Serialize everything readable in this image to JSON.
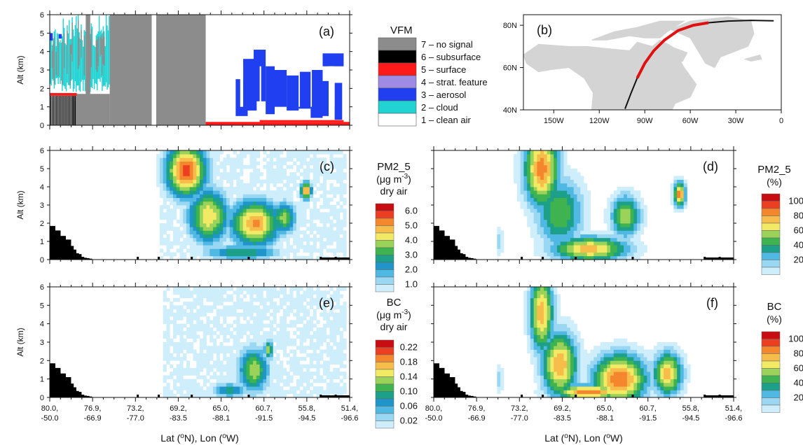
{
  "palette": {
    "vfm": [
      "#ffffff",
      "#22d3d3",
      "#1f3ff0",
      "#9f8be3",
      "#ff1a1a",
      "#000000",
      "#8c8c8c"
    ],
    "conc": [
      "#ffffff",
      "#cfeefc",
      "#9ad7f2",
      "#4fb8e3",
      "#1f95c9",
      "#1ca089",
      "#3fb34f",
      "#9bd35a",
      "#f2ea64",
      "#f7bd4a",
      "#f4862e",
      "#ec3e20",
      "#c80d12"
    ],
    "pct": [
      "#ffffff",
      "#cfeefc",
      "#9ad7f2",
      "#4fb8e3",
      "#1ca089",
      "#3fb34f",
      "#9bd35a",
      "#f2ea64",
      "#f7bd4a",
      "#f4862e",
      "#ec3e20",
      "#c80d12"
    ],
    "land": "#d4d4d4",
    "track_red": "#e01010"
  },
  "chart_data": [
    {
      "id": "a",
      "type": "heatmap",
      "panel_label": "(a)",
      "ylabel": "Alt (km)",
      "xlim": [
        0,
        1
      ],
      "ylim": [
        0,
        6
      ],
      "yticks": [
        "0",
        "1",
        "2",
        "3",
        "4",
        "5",
        "6"
      ],
      "legend": {
        "title": "VFM",
        "entries": [
          "7 – no signal",
          "6 – subsurface",
          "5 – surface",
          "4 – strat. feature",
          "3 – aerosol",
          "2 – cloud",
          "1 – clean air"
        ],
        "colors": [
          "#8c8c8c",
          "#000000",
          "#ff1a1a",
          "#9f8be3",
          "#1f3ff0",
          "#22d3d3",
          "#ffffff"
        ]
      },
      "features": [
        {
          "class": 2,
          "x": [
            0.0,
            0.2
          ],
          "y": [
            1.8,
            5.9
          ]
        },
        {
          "class": 7,
          "x": [
            0.2,
            0.52
          ],
          "y": [
            0.0,
            6.0
          ]
        },
        {
          "class": 6,
          "x": [
            0.0,
            0.09
          ],
          "y": [
            0.0,
            1.6
          ]
        },
        {
          "class": 3,
          "x": [
            0.62,
            0.98
          ],
          "y": [
            0.4,
            4.2
          ]
        },
        {
          "class": 5,
          "x": [
            0.52,
            1.0
          ],
          "y": [
            0.0,
            0.3
          ]
        }
      ]
    },
    {
      "id": "b",
      "type": "map",
      "panel_label": "(b)",
      "ylabel": "",
      "xticks": [
        "150W",
        "120W",
        "90W",
        "60W",
        "30W",
        "0"
      ],
      "yticks": [
        "40N",
        "60N",
        "80N"
      ],
      "lon_range": [
        -170,
        0
      ],
      "lat_range": [
        40,
        85
      ]
    },
    {
      "id": "c",
      "type": "heatmap",
      "panel_label": "(c)",
      "variable": "PM2_5",
      "ylabel": "Alt (km)",
      "ylim": [
        0,
        6
      ],
      "yticks": [
        "0",
        "1",
        "2",
        "3",
        "4",
        "5",
        "6"
      ],
      "colorbar": {
        "title": [
          "PM2_5",
          "(μg m",
          "-3",
          ")",
          "dry air"
        ],
        "labels": [
          "6.0",
          "5.0",
          "4.0",
          "3.0",
          "2.0",
          "1.0"
        ],
        "boundaries": [
          1.0,
          1.5,
          2.0,
          2.5,
          3.0,
          3.5,
          4.0,
          4.5,
          5.0,
          5.5,
          6.0
        ]
      },
      "plumes": [
        {
          "x": 0.455,
          "y": 4.9,
          "sx": 0.075,
          "sy": 1.6,
          "peak": 6.2
        },
        {
          "x": 0.53,
          "y": 2.4,
          "sx": 0.075,
          "sy": 1.6,
          "peak": 5.0
        },
        {
          "x": 0.685,
          "y": 2.0,
          "sx": 0.09,
          "sy": 1.4,
          "peak": 5.6
        },
        {
          "x": 0.78,
          "y": 2.3,
          "sx": 0.045,
          "sy": 1.0,
          "peak": 4.2
        },
        {
          "x": 0.855,
          "y": 3.8,
          "sx": 0.02,
          "sy": 0.5,
          "peak": 6.0
        },
        {
          "x": 0.64,
          "y": 0.4,
          "sx": 0.14,
          "sy": 0.45,
          "peak": 3.6
        }
      ],
      "background": {
        "x": [
          0.37,
          0.99
        ],
        "y": [
          0.0,
          6.0
        ],
        "level": 1.1
      }
    },
    {
      "id": "d",
      "type": "heatmap",
      "panel_label": "(d)",
      "variable": "PM2_5",
      "ylabel": "",
      "ylim": [
        0,
        6
      ],
      "colorbar": {
        "title": [
          "PM2_5",
          "(%)"
        ],
        "labels": [
          "100",
          "80",
          "60",
          "40",
          "20"
        ],
        "boundaries": [
          10,
          20,
          30,
          40,
          50,
          60,
          70,
          80,
          90,
          100
        ]
      },
      "plumes": [
        {
          "x": 0.36,
          "y": 5.0,
          "sx": 0.06,
          "sy": 2.2,
          "peak": 95
        },
        {
          "x": 0.42,
          "y": 2.6,
          "sx": 0.08,
          "sy": 2.0,
          "peak": 60
        },
        {
          "x": 0.52,
          "y": 0.6,
          "sx": 0.13,
          "sy": 0.7,
          "peak": 85
        },
        {
          "x": 0.64,
          "y": 2.4,
          "sx": 0.05,
          "sy": 1.2,
          "peak": 70
        },
        {
          "x": 0.82,
          "y": 3.6,
          "sx": 0.02,
          "sy": 0.7,
          "peak": 95
        },
        {
          "x": 0.22,
          "y": 1.0,
          "sx": 0.01,
          "sy": 0.8,
          "peak": 30
        }
      ],
      "background": {
        "x": [
          0.3,
          0.93
        ],
        "y": [
          0.0,
          6.0
        ],
        "level": 5
      }
    },
    {
      "id": "e",
      "type": "heatmap",
      "panel_label": "(e)",
      "variable": "BC",
      "ylabel": "Alt (km)",
      "ylim": [
        0,
        6
      ],
      "yticks": [
        "0",
        "1",
        "2",
        "3",
        "4",
        "5",
        "6"
      ],
      "colorbar": {
        "title": [
          "BC",
          "(μg m",
          "-3",
          ")",
          "dry air"
        ],
        "labels": [
          "0.22",
          "0.18",
          "0.14",
          "0.10",
          "0.06",
          "0.02"
        ],
        "boundaries": [
          0.02,
          0.04,
          0.06,
          0.08,
          0.1,
          0.12,
          0.14,
          0.16,
          0.18,
          0.2,
          0.22
        ]
      },
      "plumes": [
        {
          "x": 0.68,
          "y": 1.5,
          "sx": 0.05,
          "sy": 1.2,
          "peak": 0.16
        },
        {
          "x": 0.73,
          "y": 2.6,
          "sx": 0.015,
          "sy": 0.5,
          "peak": 0.16
        },
        {
          "x": 0.6,
          "y": 0.4,
          "sx": 0.06,
          "sy": 0.4,
          "peak": 0.11
        }
      ],
      "background": {
        "x": [
          0.38,
          0.99
        ],
        "y": [
          0.0,
          6.0
        ],
        "level": 0.03
      }
    },
    {
      "id": "f",
      "type": "heatmap",
      "panel_label": "(f)",
      "variable": "BC",
      "ylabel": "",
      "ylim": [
        0,
        6
      ],
      "colorbar": {
        "title": [
          "BC",
          "(%)"
        ],
        "labels": [
          "100",
          "80",
          "60",
          "40",
          "20"
        ],
        "boundaries": [
          10,
          20,
          30,
          40,
          50,
          60,
          70,
          80,
          90,
          100
        ]
      },
      "plumes": [
        {
          "x": 0.36,
          "y": 4.6,
          "sx": 0.04,
          "sy": 2.2,
          "peak": 88
        },
        {
          "x": 0.42,
          "y": 1.8,
          "sx": 0.06,
          "sy": 1.8,
          "peak": 90
        },
        {
          "x": 0.62,
          "y": 1.0,
          "sx": 0.09,
          "sy": 1.4,
          "peak": 100
        },
        {
          "x": 0.52,
          "y": 0.3,
          "sx": 0.12,
          "sy": 0.4,
          "peak": 100
        },
        {
          "x": 0.78,
          "y": 1.3,
          "sx": 0.05,
          "sy": 1.2,
          "peak": 85
        },
        {
          "x": 0.22,
          "y": 1.0,
          "sx": 0.01,
          "sy": 0.8,
          "peak": 30
        }
      ],
      "background": {
        "x": [
          0.3,
          0.9
        ],
        "y": [
          0.0,
          6.0
        ],
        "level": 5
      }
    }
  ],
  "xaxis": {
    "ticks_lat": [
      "80.0,",
      "76.9,",
      "73.2,",
      "69.2,",
      "65.0,",
      "60.7,",
      "55.8,",
      "51.4,"
    ],
    "ticks_lon": [
      "-50.0",
      "-66.9",
      "-77.0",
      "-83.5",
      "-88.1",
      "-91.5",
      "-94.5",
      "-96.6"
    ],
    "label_main": "Lat (",
    "label_deg": "o",
    "label_mid": "N), Lon (",
    "label_end": "W)"
  },
  "terrain": [
    1.85,
    1.85,
    1.6,
    1.6,
    1.3,
    1.3,
    1.1,
    1.1,
    0.75,
    0.55,
    0.35,
    0.3,
    0.15,
    0.1,
    0.08,
    0.05
  ]
}
